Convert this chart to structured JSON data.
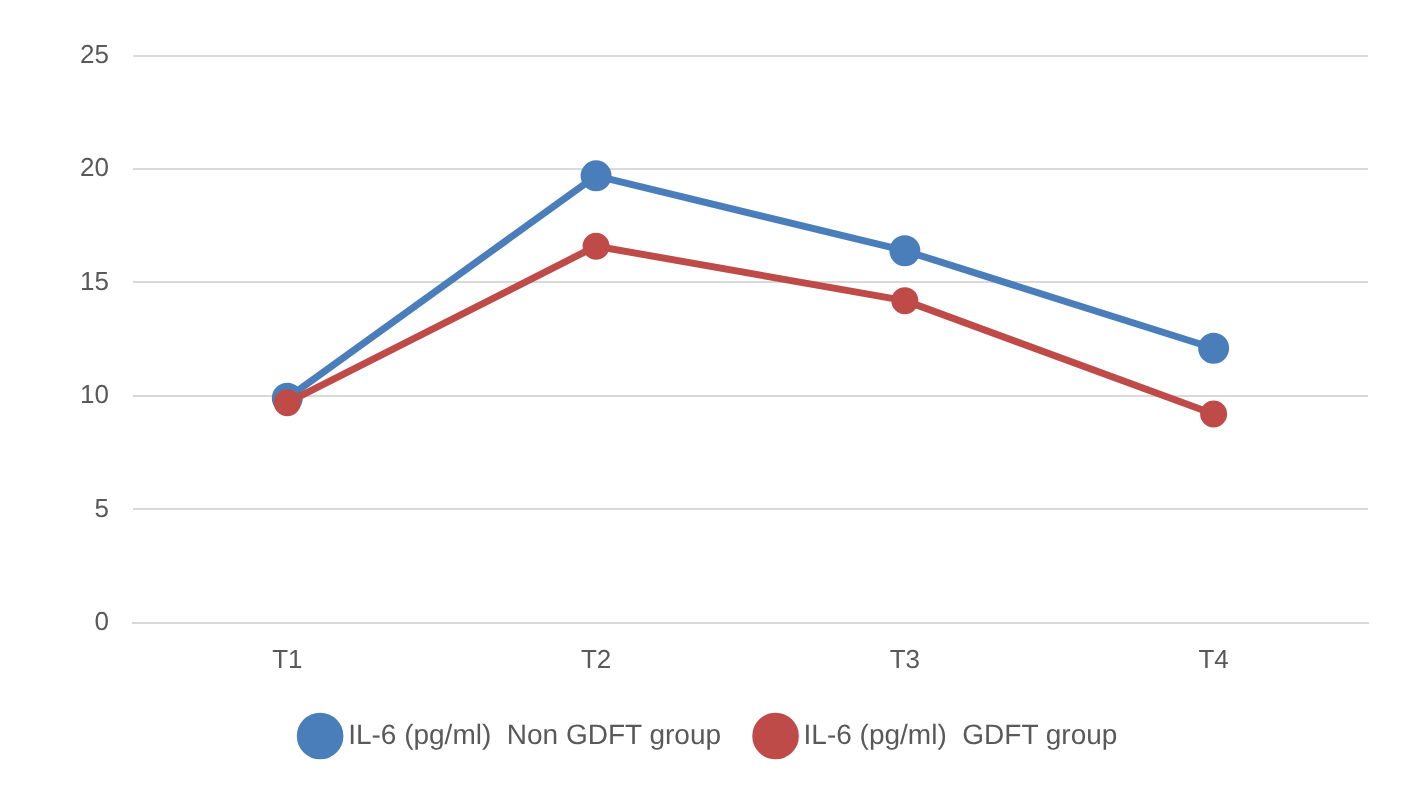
{
  "chart_data": {
    "type": "line",
    "categories": [
      "T1",
      "T2",
      "T3",
      "T4"
    ],
    "series": [
      {
        "name": "IL-6 (pg/ml)  Non GDFT group",
        "color": "#4a7ebb",
        "values": [
          9.9,
          19.7,
          16.4,
          12.1
        ]
      },
      {
        "name": "IL-6 (pg/ml)  GDFT group",
        "color": "#be4b48",
        "values": [
          9.7,
          16.6,
          14.2,
          9.2
        ]
      }
    ],
    "ylim": [
      0,
      25
    ],
    "yticks": [
      0,
      5,
      10,
      15,
      20,
      25
    ],
    "grid": "y",
    "legend": "bottom",
    "marker": "circle",
    "line_style": "solid"
  }
}
